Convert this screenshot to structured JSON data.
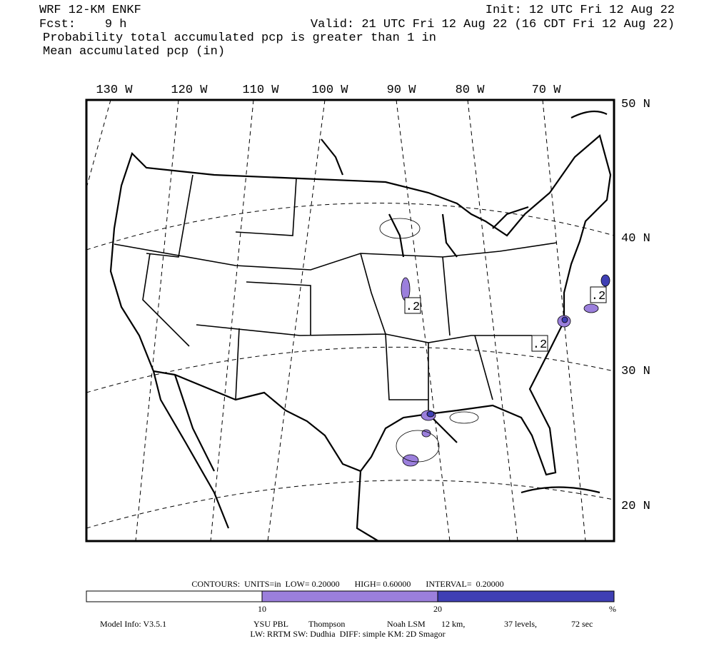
{
  "header": {
    "model": "WRF 12-KM ENKF",
    "init": "Init: 12 UTC Fri 12 Aug 22",
    "fcst": "Fcst:    9 h",
    "valid": "Valid: 21 UTC Fri 12 Aug 22 (16 CDT Fri 12 Aug 22)",
    "field1": "Probability total accumulated pcp is greater than 1 in",
    "field2": "Mean accumulated pcp (in)"
  },
  "map": {
    "lon_labels": [
      "130 W",
      "120 W",
      "110 W",
      "100 W",
      "90 W",
      "80 W",
      "70 W"
    ],
    "lat_labels": [
      "50 N",
      "40 N",
      "30 N",
      "20 N"
    ],
    "contour_labels": [
      ".2",
      ".2",
      ".2"
    ],
    "shade_colors": [
      "#9b7fdc",
      "#3f3fb4"
    ]
  },
  "footer": {
    "contours": "CONTOURS:  UNITS=in  LOW= 0.20000       HIGH= 0.60000       INTERVAL=  0.20000",
    "colorbar": {
      "labels": [
        "10",
        "20"
      ],
      "unit": "%",
      "colors": [
        "#ffffff",
        "#9b7fdc",
        "#3f3fb4"
      ]
    },
    "model_info": [
      "Model Info: V3.5.1",
      "YSU PBL",
      "Thompson",
      "Noah LSM",
      "12 km,",
      "37 levels,",
      "72 sec"
    ],
    "physics": "LW: RRTM SW: Dudhia  DIFF: simple KM: 2D Smagor"
  }
}
